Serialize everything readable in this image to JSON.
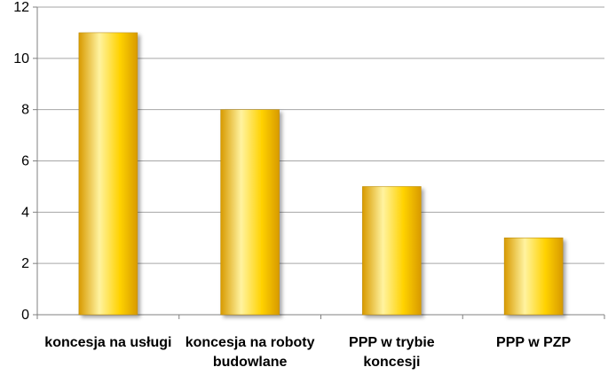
{
  "chart_data": {
    "type": "bar",
    "title": "",
    "xlabel": "",
    "ylabel": "",
    "categories": [
      [
        "koncesja na usługi"
      ],
      [
        "koncesja na roboty",
        "budowlane"
      ],
      [
        "PPP w trybie",
        "koncesji"
      ],
      [
        "PPP w PZP"
      ]
    ],
    "values": [
      11,
      8,
      5,
      3
    ],
    "ylim": [
      0,
      12
    ],
    "yticks": [
      0,
      2,
      4,
      6,
      8,
      10,
      12
    ],
    "grid": true,
    "legend": "none",
    "colors": {
      "bar_light": "#FFF3A0",
      "bar_mid": "#FFD200",
      "bar_dark": "#D89A00",
      "bar_edge": "#B88600",
      "grid": "#A6A6A6",
      "axis": "#808080"
    }
  }
}
